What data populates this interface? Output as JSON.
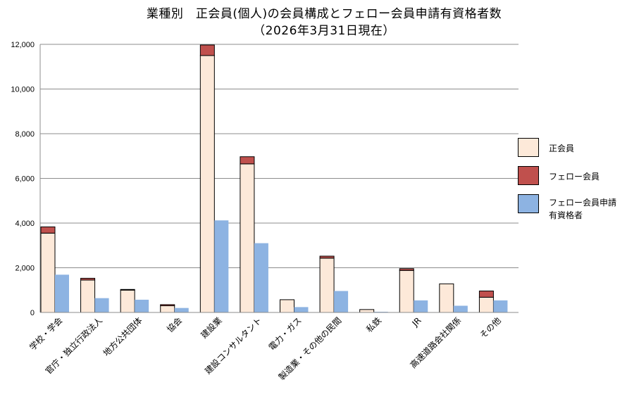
{
  "chart_data": {
    "type": "bar",
    "title": "業種別　正会員(個人)の会員構成とフェロー会員申請有資格者数",
    "subtitle": "（2026年3月31日現在）",
    "categories": [
      "学校・学会",
      "官庁・独立行政法人",
      "地方公共団体",
      "協会",
      "建設業",
      "建設コンサルタント",
      "電力・ガス",
      "製造業・その他の民間",
      "私鉄",
      "JR",
      "高速道路会社関係",
      "その他"
    ],
    "series": [
      {
        "name": "正会員",
        "stack": "A",
        "color": "#FDE9D9",
        "values": [
          3550,
          1450,
          1000,
          300,
          11500,
          6650,
          570,
          2430,
          130,
          1880,
          1280,
          680
        ]
      },
      {
        "name": "フェロー会員",
        "stack": "A",
        "color": "#C0504D",
        "values": [
          280,
          80,
          30,
          50,
          470,
          320,
          0,
          90,
          0,
          80,
          0,
          280
        ]
      },
      {
        "name": "フェロー会員申請有資格者",
        "stack": "B",
        "color": "#8DB3E2",
        "values": [
          1690,
          640,
          570,
          200,
          4120,
          3100,
          240,
          960,
          30,
          540,
          300,
          540
        ]
      }
    ],
    "ylim": [
      0,
      12000
    ],
    "yticks": [
      "0",
      "2,000",
      "4,000",
      "6,000",
      "8,000",
      "10,000",
      "12,000"
    ],
    "ytick_values": [
      0,
      2000,
      4000,
      6000,
      8000,
      10000,
      12000
    ],
    "grid": true,
    "legend": "right"
  },
  "legend_items": [
    {
      "label": "正会員",
      "color": "#FDE9D9"
    },
    {
      "label": "フェロー会員",
      "color": "#C0504D"
    },
    {
      "label_line1": "フェロー会員申請",
      "label_line2": "有資格者",
      "color": "#8DB3E2"
    }
  ]
}
